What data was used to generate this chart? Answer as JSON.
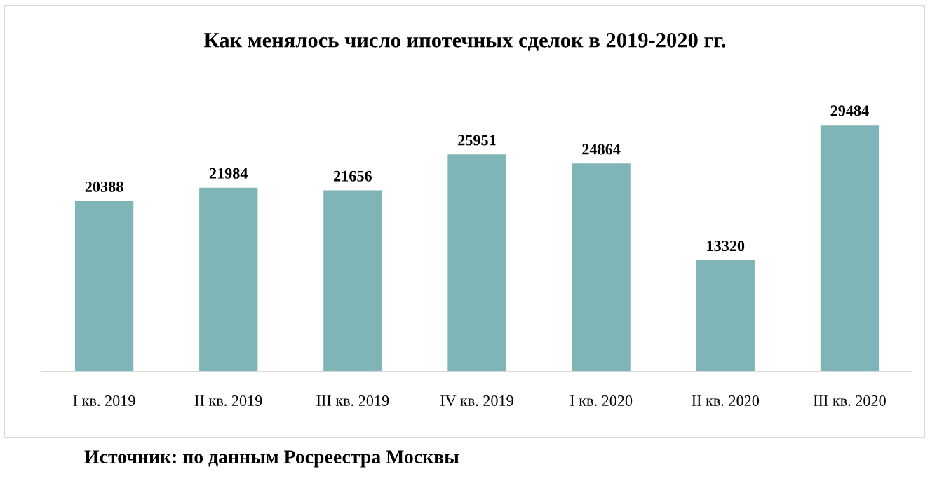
{
  "chart_data": {
    "type": "bar",
    "title": "Как менялось число ипотечных сделок в 2019-2020 гг.",
    "categories": [
      "I кв. 2019",
      "II кв. 2019",
      "III кв. 2019",
      "IV кв. 2019",
      "I кв. 2020",
      "II кв. 2020",
      "III кв. 2020"
    ],
    "values": [
      20388,
      21984,
      21656,
      25951,
      24864,
      13320,
      29484
    ],
    "color": "#80b5b8",
    "data_labels": true,
    "grid": false,
    "legend": false,
    "annotations": [
      "Источник: по данным Росреестра Москвы"
    ]
  }
}
